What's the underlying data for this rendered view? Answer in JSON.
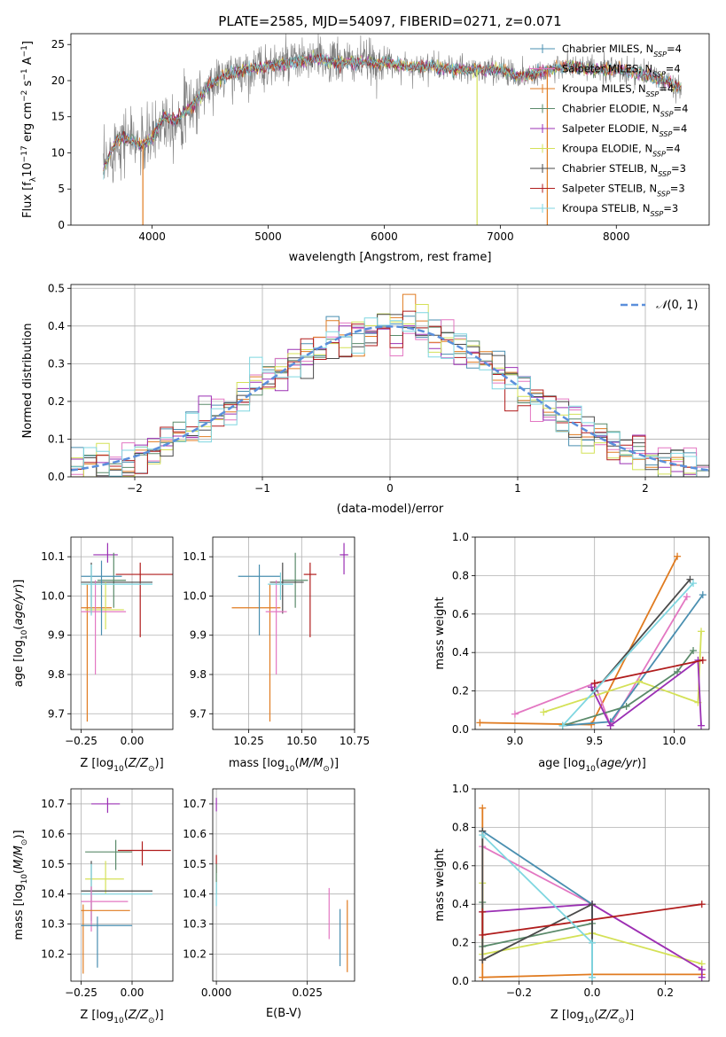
{
  "figure": {
    "title": "PLATE=2585, MJD=54097, FIBERID=0271, z=0.071"
  },
  "legend_labels": [
    "Chabrier MILES, N_SSP=4",
    "Salpeter MILES, N_SSP=4",
    "Kroupa MILES, N_SSP=4",
    "Chabrier ELODIE, N_SSP=4",
    "Salpeter ELODIE, N_SSP=4",
    "Kroupa ELODIE, N_SSP=4",
    "Chabrier STELIB, N_SSP=3",
    "Salpeter STELIB, N_SSP=3",
    "Kroupa STELIB, N_SSP=3"
  ],
  "colors": {
    "Chabrier MILES": "#4a8fb0",
    "Salpeter MILES": "#e377c2",
    "Kroupa MILES": "#e07b20",
    "Chabrier ELODIE": "#5a8a6a",
    "Salpeter ELODIE": "#9b30b4",
    "Kroupa ELODIE": "#d4e157",
    "Chabrier STELIB": "#4a4a4a",
    "Salpeter STELIB": "#b01c1c",
    "Kroupa STELIB": "#7fd6e0"
  },
  "chart_data": [
    {
      "id": "spectrum",
      "type": "line",
      "title": "PLATE=2585, MJD=54097, FIBERID=0271, z=0.071",
      "xlabel": "wavelength [Angstrom, rest frame]",
      "ylabel": "Flux [f_λ 10^-17 erg cm^-2 s^-1 A^-1]",
      "xlim": [
        3300,
        8800
      ],
      "ylim": [
        0,
        26.5
      ],
      "xticks": [
        4000,
        5000,
        6000,
        7000,
        8000
      ],
      "yticks": [
        0,
        5,
        10,
        15,
        20,
        25
      ],
      "grid": false,
      "legend_position": "top-right",
      "continuum": {
        "x": [
          3580,
          3700,
          3800,
          3900,
          4000,
          4100,
          4200,
          4300,
          4400,
          4500,
          4600,
          4800,
          5000,
          5200,
          5400,
          5600,
          5800,
          6000,
          6200,
          6400,
          6600,
          6800,
          7000,
          7200,
          7400,
          7600,
          7800,
          8000,
          8200,
          8400,
          8550
        ],
        "y": [
          7.5,
          12.0,
          12.0,
          11.0,
          12.0,
          15.0,
          14.5,
          16.0,
          17.5,
          19.5,
          20.5,
          21.5,
          22.0,
          22.5,
          23.0,
          22.5,
          22.5,
          22.5,
          22.0,
          22.0,
          21.5,
          21.5,
          21.5,
          20.5,
          21.5,
          22.0,
          21.5,
          21.5,
          21.0,
          20.0,
          19.0
        ]
      },
      "dropouts": [
        {
          "x": 3920,
          "ymin": 0
        },
        {
          "x": 6800,
          "ymin": 0
        },
        {
          "x": 7405,
          "ymin": 0
        }
      ]
    },
    {
      "id": "residuals",
      "type": "histogram",
      "xlabel": "(data-model)/error",
      "ylabel": "Normed distribution",
      "xlim": [
        -2.5,
        2.5
      ],
      "ylim": [
        0,
        0.51
      ],
      "xticks": [
        -2,
        -1,
        0,
        1,
        2
      ],
      "yticks": [
        0.0,
        0.1,
        0.2,
        0.3,
        0.4,
        0.5
      ],
      "grid": true,
      "legend_position": "top-right",
      "reference_label": "N(0, 1)",
      "reference_color": "#5b8fdb",
      "bin_width": 0.1
    },
    {
      "id": "age-vs-Z",
      "type": "errorbar",
      "xlabel": "Z [log10(Z/Z⊙)]",
      "ylabel": "age  [log10(age/yr)]",
      "xlim": [
        -0.3,
        0.2
      ],
      "ylim": [
        9.66,
        10.15
      ],
      "xticks": [
        -0.25,
        0.0
      ],
      "yticks": [
        9.7,
        9.8,
        9.9,
        10.0,
        10.1
      ],
      "grid": true,
      "points": [
        {
          "series": "Salpeter ELODIE",
          "x": -0.12,
          "y": 10.105,
          "xerr": [
            0.07,
            0.05
          ],
          "yerr": [
            0.02,
            0.03
          ]
        },
        {
          "series": "Salpeter STELIB",
          "x": 0.04,
          "y": 10.055,
          "xerr": [
            0.12,
            0.16
          ],
          "yerr": [
            0.16,
            0.03
          ]
        },
        {
          "series": "Chabrier ELODIE",
          "x": -0.09,
          "y": 10.04,
          "xerr": [
            0.08,
            0.06
          ],
          "yerr": [
            0.07,
            0.07
          ]
        },
        {
          "series": "Chabrier STELIB",
          "x": -0.2,
          "y": 10.035,
          "xerr": [
            0.05,
            0.3
          ],
          "yerr": [
            0.08,
            0.05
          ]
        },
        {
          "series": "Kroupa MILES",
          "x": -0.22,
          "y": 9.97,
          "xerr": [
            0.03,
            0.12
          ],
          "yerr": [
            0.29,
            0.06
          ]
        },
        {
          "series": "Kroupa ELODIE",
          "x": -0.13,
          "y": 9.965,
          "xerr": [
            0.1,
            0.09
          ],
          "yerr": [
            0.05,
            0.07
          ]
        },
        {
          "series": "Salpeter MILES",
          "x": -0.18,
          "y": 9.96,
          "xerr": [
            0.07,
            0.15
          ],
          "yerr": [
            0.16,
            0.08
          ]
        },
        {
          "series": "Chabrier MILES",
          "x": -0.15,
          "y": 10.05,
          "xerr": [
            0.1,
            0.1
          ],
          "yerr": [
            0.15,
            0.04
          ]
        },
        {
          "series": "Kroupa STELIB",
          "x": -0.2,
          "y": 10.03,
          "xerr": [
            0.05,
            0.3
          ],
          "yerr": [
            0.08,
            0.05
          ]
        }
      ]
    },
    {
      "id": "age-vs-mass",
      "type": "errorbar",
      "xlabel": "mass [log10(M/M⊙)]",
      "ylabel": "",
      "xlim": [
        10.08,
        10.75
      ],
      "ylim": [
        9.66,
        10.15
      ],
      "xticks": [
        10.25,
        10.5,
        10.75
      ],
      "yticks": [
        9.7,
        9.8,
        9.9,
        10.0,
        10.1
      ],
      "grid": true,
      "points": [
        {
          "series": "Salpeter ELODIE",
          "x": 10.7,
          "y": 10.105,
          "xerr": [
            0.02,
            0.02
          ],
          "yerr": [
            0.05,
            0.03
          ]
        },
        {
          "series": "Salpeter STELIB",
          "x": 10.54,
          "y": 10.055,
          "xerr": [
            0.03,
            0.03
          ],
          "yerr": [
            0.16,
            0.03
          ]
        },
        {
          "series": "Chabrier ELODIE",
          "x": 10.47,
          "y": 10.04,
          "xerr": [
            0.06,
            0.06
          ],
          "yerr": [
            0.07,
            0.07
          ]
        },
        {
          "series": "Chabrier STELIB",
          "x": 10.41,
          "y": 10.035,
          "xerr": [
            0.06,
            0.1
          ],
          "yerr": [
            0.08,
            0.05
          ]
        },
        {
          "series": "Kroupa MILES",
          "x": 10.35,
          "y": 9.97,
          "xerr": [
            0.18,
            0.05
          ],
          "yerr": [
            0.29,
            0.06
          ]
        },
        {
          "series": "Salpeter MILES",
          "x": 10.38,
          "y": 9.96,
          "xerr": [
            0.05,
            0.05
          ],
          "yerr": [
            0.16,
            0.08
          ]
        },
        {
          "series": "Chabrier MILES",
          "x": 10.3,
          "y": 10.05,
          "xerr": [
            0.1,
            0.1
          ],
          "yerr": [
            0.15,
            0.03
          ]
        },
        {
          "series": "Kroupa STELIB",
          "x": 10.4,
          "y": 10.03,
          "xerr": [
            0.06,
            0.06
          ],
          "yerr": [
            0.04,
            0.03
          ]
        }
      ]
    },
    {
      "id": "weight-vs-age",
      "type": "line",
      "xlabel": "age  [log10(age/yr)]",
      "ylabel": "mass weight",
      "xlim": [
        8.75,
        10.22
      ],
      "ylim": [
        0,
        1.0
      ],
      "xticks": [
        9.0,
        9.5,
        10.0
      ],
      "yticks": [
        0.0,
        0.2,
        0.4,
        0.6,
        0.8,
        1.0
      ],
      "grid": true,
      "series": [
        {
          "name": "Kroupa MILES",
          "x": [
            8.78,
            9.48,
            10.02
          ],
          "y": [
            0.035,
            0.025,
            0.9
          ]
        },
        {
          "name": "Salpeter MILES",
          "x": [
            9.0,
            9.5,
            9.6,
            10.08
          ],
          "y": [
            0.08,
            0.24,
            0.02,
            0.69
          ]
        },
        {
          "name": "Chabrier MILES",
          "x": [
            9.3,
            9.6,
            10.18
          ],
          "y": [
            0.02,
            0.04,
            0.7
          ]
        },
        {
          "name": "Kroupa ELODIE",
          "x": [
            9.18,
            9.78,
            10.15,
            10.17
          ],
          "y": [
            0.09,
            0.25,
            0.14,
            0.51
          ]
        },
        {
          "name": "Chabrier ELODIE",
          "x": [
            9.3,
            9.7,
            10.02,
            10.12
          ],
          "y": [
            0.02,
            0.12,
            0.3,
            0.41
          ]
        },
        {
          "name": "Salpeter ELODIE",
          "x": [
            9.48,
            9.6,
            10.15,
            10.17
          ],
          "y": [
            0.22,
            0.02,
            0.36,
            0.02
          ]
        },
        {
          "name": "Chabrier STELIB",
          "x": [
            9.5,
            10.1
          ],
          "y": [
            0.2,
            0.78
          ]
        },
        {
          "name": "Salpeter STELIB",
          "x": [
            9.5,
            10.18
          ],
          "y": [
            0.24,
            0.36
          ]
        },
        {
          "name": "Kroupa STELIB",
          "x": [
            9.3,
            10.12
          ],
          "y": [
            0.02,
            0.76
          ]
        }
      ]
    },
    {
      "id": "mass-vs-Z",
      "type": "errorbar",
      "xlabel": "Z [log10(Z/Z⊙)]",
      "ylabel": "mass [log10(M/M⊙)]",
      "xlim": [
        -0.3,
        0.2
      ],
      "ylim": [
        10.11,
        10.75
      ],
      "xticks": [
        -0.25,
        0.0
      ],
      "yticks": [
        10.2,
        10.3,
        10.4,
        10.5,
        10.6,
        10.7
      ],
      "grid": true,
      "points": [
        {
          "series": "Salpeter ELODIE",
          "x": -0.12,
          "y": 10.7,
          "xerr": [
            0.08,
            0.06
          ],
          "yerr": [
            0.03,
            0.02
          ]
        },
        {
          "series": "Salpeter STELIB",
          "x": 0.05,
          "y": 10.545,
          "xerr": [
            0.12,
            0.14
          ],
          "yerr": [
            0.05,
            0.03
          ]
        },
        {
          "series": "Chabrier ELODIE",
          "x": -0.08,
          "y": 10.54,
          "xerr": [
            0.15,
            0.08
          ],
          "yerr": [
            0.06,
            0.04
          ]
        },
        {
          "series": "Kroupa ELODIE",
          "x": -0.13,
          "y": 10.45,
          "xerr": [
            0.1,
            0.09
          ],
          "yerr": [
            0.05,
            0.06
          ]
        },
        {
          "series": "Chabrier STELIB",
          "x": -0.2,
          "y": 10.41,
          "xerr": [
            0.05,
            0.3
          ],
          "yerr": [
            0.1,
            0.1
          ]
        },
        {
          "series": "Kroupa STELIB",
          "x": -0.2,
          "y": 10.4,
          "xerr": [
            0.05,
            0.3
          ],
          "yerr": [
            0.1,
            0.1
          ]
        },
        {
          "series": "Salpeter MILES",
          "x": -0.2,
          "y": 10.375,
          "xerr": [
            0.05,
            0.18
          ],
          "yerr": [
            0.1,
            0.05
          ]
        },
        {
          "series": "Kroupa MILES",
          "x": -0.24,
          "y": 10.345,
          "xerr": [
            0.01,
            0.23
          ],
          "yerr": [
            0.21,
            0.02
          ]
        },
        {
          "series": "Chabrier MILES",
          "x": -0.17,
          "y": 10.295,
          "xerr": [
            0.08,
            0.17
          ],
          "yerr": [
            0.14,
            0.03
          ]
        }
      ]
    },
    {
      "id": "mass-vs-EBV",
      "type": "errorbar",
      "xlabel": "E(B-V)",
      "ylabel": "",
      "xlim": [
        -0.001,
        0.038
      ],
      "ylim": [
        10.11,
        10.75
      ],
      "xticks": [
        0.0,
        0.025
      ],
      "yticks": [
        10.2,
        10.3,
        10.4,
        10.5,
        10.6,
        10.7
      ],
      "grid": true,
      "points": [
        {
          "series": "Salpeter ELODIE",
          "x": 0.0,
          "y": 10.7,
          "xerr": [
            0,
            0
          ],
          "yerr": [
            0.025,
            0.02
          ]
        },
        {
          "series": "Salpeter STELIB",
          "x": 0.0,
          "y": 10.5,
          "xerr": [
            0,
            0
          ],
          "yerr": [
            0.03,
            0.03
          ]
        },
        {
          "series": "Chabrier ELODIE",
          "x": 0.0,
          "y": 10.45,
          "xerr": [
            0,
            0
          ],
          "yerr": [
            0.05,
            0.05
          ]
        },
        {
          "series": "Kroupa STELIB",
          "x": 0.0,
          "y": 10.4,
          "xerr": [
            0,
            0
          ],
          "yerr": [
            0.04,
            0.04
          ]
        },
        {
          "series": "Salpeter MILES",
          "x": 0.031,
          "y": 10.335,
          "xerr": [
            0,
            0
          ],
          "yerr": [
            0.085,
            0.085
          ]
        },
        {
          "series": "Chabrier MILES",
          "x": 0.034,
          "y": 10.305,
          "xerr": [
            0,
            0
          ],
          "yerr": [
            0.145,
            0.045
          ]
        },
        {
          "series": "Kroupa MILES",
          "x": 0.036,
          "y": 10.26,
          "xerr": [
            0,
            0
          ],
          "yerr": [
            0.12,
            0.12
          ]
        }
      ]
    },
    {
      "id": "weight-vs-Z",
      "type": "line",
      "xlabel": "Z [log10(Z/Z⊙)]",
      "ylabel": "mass weight",
      "xlim": [
        -0.32,
        0.32
      ],
      "ylim": [
        0,
        1.0
      ],
      "xticks": [
        -0.2,
        0.0,
        0.2
      ],
      "yticks": [
        0.0,
        0.2,
        0.4,
        0.6,
        0.8,
        1.0
      ],
      "grid": true,
      "series": [
        {
          "name": "Kroupa MILES",
          "x": [
            -0.3,
            -0.3,
            0.0,
            0.3
          ],
          "y": [
            0.9,
            0.02,
            0.035,
            0.035
          ]
        },
        {
          "name": "Salpeter MILES",
          "x": [
            -0.3,
            0.0,
            0.3
          ],
          "y": [
            0.7,
            0.4,
            0.06
          ]
        },
        {
          "name": "Chabrier MILES",
          "x": [
            -0.3,
            0.0,
            0.0
          ],
          "y": [
            0.78,
            0.4,
            0.02
          ]
        },
        {
          "name": "Kroupa ELODIE",
          "x": [
            -0.3,
            -0.3,
            0.0,
            0.3
          ],
          "y": [
            0.51,
            0.14,
            0.25,
            0.09
          ]
        },
        {
          "name": "Chabrier ELODIE",
          "x": [
            -0.3,
            -0.3,
            0.0
          ],
          "y": [
            0.41,
            0.18,
            0.3
          ]
        },
        {
          "name": "Salpeter ELODIE",
          "x": [
            -0.3,
            0.0,
            0.3,
            0.3
          ],
          "y": [
            0.36,
            0.4,
            0.06,
            0.02
          ]
        },
        {
          "name": "Chabrier STELIB",
          "x": [
            -0.3,
            -0.3,
            0.0,
            0.0
          ],
          "y": [
            0.78,
            0.11,
            0.4,
            0.2
          ]
        },
        {
          "name": "Salpeter STELIB",
          "x": [
            -0.3,
            -0.3,
            0.3
          ],
          "y": [
            0.36,
            0.24,
            0.4
          ]
        },
        {
          "name": "Kroupa STELIB",
          "x": [
            -0.3,
            0.0,
            0.0
          ],
          "y": [
            0.76,
            0.2,
            0.02
          ]
        }
      ]
    }
  ]
}
